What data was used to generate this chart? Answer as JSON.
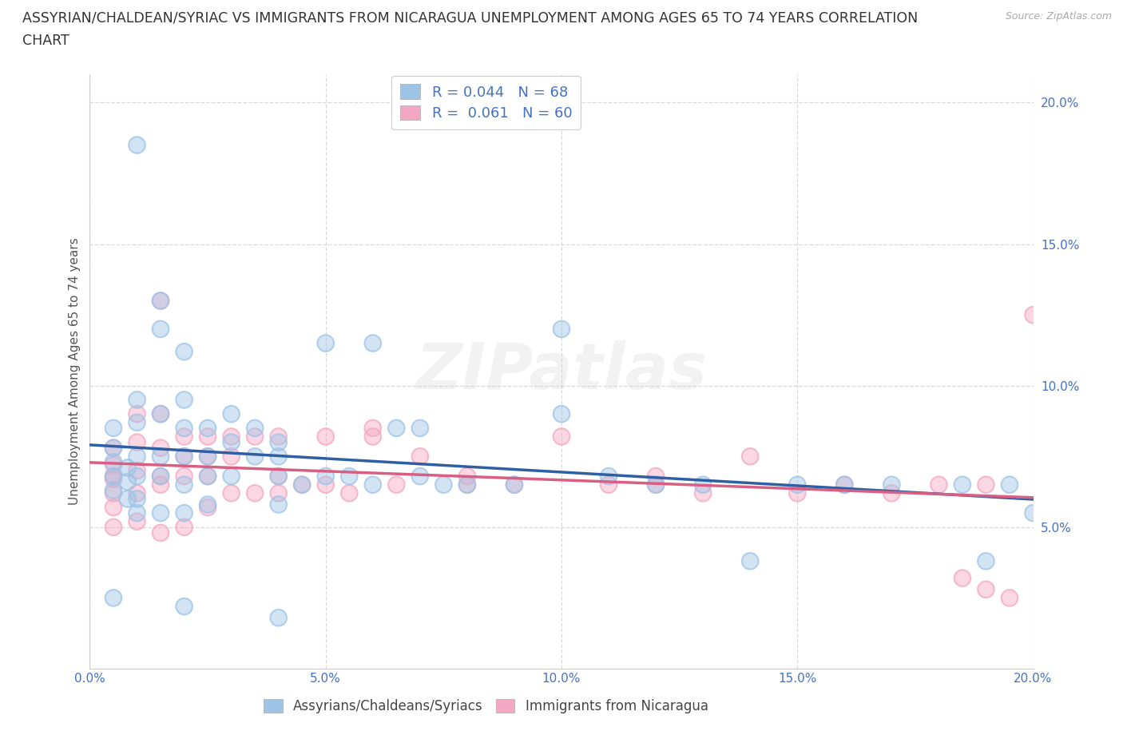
{
  "title_line1": "ASSYRIAN/CHALDEAN/SYRIAC VS IMMIGRANTS FROM NICARAGUA UNEMPLOYMENT AMONG AGES 65 TO 74 YEARS CORRELATION",
  "title_line2": "CHART",
  "source": "Source: ZipAtlas.com",
  "ylabel": "Unemployment Among Ages 65 to 74 years",
  "xlim": [
    0.0,
    0.2
  ],
  "ylim": [
    0.0,
    0.21
  ],
  "xticks": [
    0.0,
    0.05,
    0.1,
    0.15,
    0.2
  ],
  "yticks": [
    0.05,
    0.1,
    0.15,
    0.2
  ],
  "tick_label_color": "#4472c4",
  "R_blue": 0.044,
  "N_blue": 68,
  "R_pink": 0.061,
  "N_pink": 60,
  "blue_color": "#9dc3e6",
  "pink_color": "#f4a7c3",
  "blue_line_color": "#2e5fa3",
  "pink_line_color": "#d95f82",
  "legend_text_color": "#4472c4",
  "watermark": "ZIPatlas",
  "blue_scatter_x": [
    0.005,
    0.005,
    0.005,
    0.005,
    0.005,
    0.008,
    0.008,
    0.008,
    0.01,
    0.01,
    0.01,
    0.01,
    0.01,
    0.01,
    0.01,
    0.015,
    0.015,
    0.015,
    0.015,
    0.015,
    0.015,
    0.02,
    0.02,
    0.02,
    0.02,
    0.02,
    0.02,
    0.025,
    0.025,
    0.025,
    0.025,
    0.03,
    0.03,
    0.03,
    0.035,
    0.035,
    0.04,
    0.04,
    0.04,
    0.04,
    0.045,
    0.05,
    0.05,
    0.055,
    0.06,
    0.065,
    0.07,
    0.07,
    0.075,
    0.08,
    0.09,
    0.1,
    0.1,
    0.11,
    0.12,
    0.13,
    0.14,
    0.15,
    0.16,
    0.17,
    0.185,
    0.19,
    0.195,
    0.2,
    0.005,
    0.02,
    0.04,
    0.06
  ],
  "blue_scatter_y": [
    0.063,
    0.068,
    0.073,
    0.078,
    0.085,
    0.06,
    0.066,
    0.071,
    0.185,
    0.095,
    0.087,
    0.075,
    0.068,
    0.06,
    0.055,
    0.13,
    0.12,
    0.09,
    0.075,
    0.068,
    0.055,
    0.112,
    0.095,
    0.085,
    0.075,
    0.065,
    0.055,
    0.085,
    0.075,
    0.068,
    0.058,
    0.09,
    0.08,
    0.068,
    0.085,
    0.075,
    0.08,
    0.075,
    0.068,
    0.058,
    0.065,
    0.115,
    0.068,
    0.068,
    0.115,
    0.085,
    0.085,
    0.068,
    0.065,
    0.065,
    0.065,
    0.12,
    0.09,
    0.068,
    0.065,
    0.065,
    0.038,
    0.065,
    0.065,
    0.065,
    0.065,
    0.038,
    0.065,
    0.055,
    0.025,
    0.022,
    0.018,
    0.065
  ],
  "pink_scatter_x": [
    0.005,
    0.005,
    0.005,
    0.005,
    0.005,
    0.005,
    0.01,
    0.01,
    0.01,
    0.01,
    0.01,
    0.015,
    0.015,
    0.015,
    0.015,
    0.015,
    0.02,
    0.02,
    0.02,
    0.02,
    0.025,
    0.025,
    0.025,
    0.03,
    0.03,
    0.03,
    0.035,
    0.035,
    0.04,
    0.04,
    0.045,
    0.05,
    0.05,
    0.055,
    0.06,
    0.065,
    0.07,
    0.08,
    0.09,
    0.1,
    0.11,
    0.12,
    0.13,
    0.14,
    0.15,
    0.16,
    0.17,
    0.18,
    0.185,
    0.19,
    0.195,
    0.2,
    0.005,
    0.015,
    0.025,
    0.04,
    0.06,
    0.08,
    0.12,
    0.19
  ],
  "pink_scatter_y": [
    0.078,
    0.072,
    0.067,
    0.062,
    0.057,
    0.05,
    0.09,
    0.08,
    0.07,
    0.062,
    0.052,
    0.13,
    0.09,
    0.078,
    0.068,
    0.048,
    0.082,
    0.075,
    0.068,
    0.05,
    0.082,
    0.075,
    0.057,
    0.082,
    0.075,
    0.062,
    0.082,
    0.062,
    0.082,
    0.062,
    0.065,
    0.082,
    0.065,
    0.062,
    0.082,
    0.065,
    0.075,
    0.065,
    0.065,
    0.082,
    0.065,
    0.065,
    0.062,
    0.075,
    0.062,
    0.065,
    0.062,
    0.065,
    0.032,
    0.065,
    0.025,
    0.125,
    0.068,
    0.065,
    0.068,
    0.068,
    0.085,
    0.068,
    0.068,
    0.028
  ],
  "legend_label_blue": "Assyrians/Chaldeans/Syriacs",
  "legend_label_pink": "Immigrants from Nicaragua",
  "grid_color": "#d0d0d0",
  "background_color": "#ffffff"
}
